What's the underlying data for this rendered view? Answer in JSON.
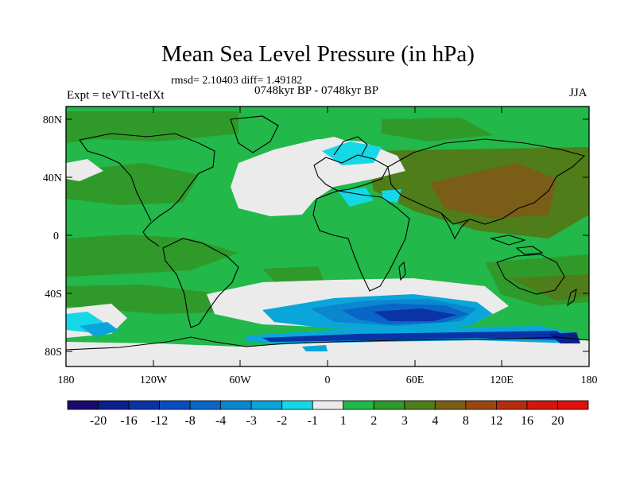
{
  "title": "Mean Sea Level Pressure (in hPa)",
  "stats": "rmsd= 2.10403 diff= 1.49182",
  "experiment": "Expt = teVTt1-teIXt",
  "period": "0748kyr BP - 0748kyr BP",
  "season": "JJA",
  "map": {
    "lat_labels": [
      "80N",
      "40N",
      "0",
      "40S",
      "80S"
    ],
    "lon_labels": [
      "180",
      "120W",
      "60W",
      "0",
      "60E",
      "120E",
      "180"
    ]
  },
  "colorbar": {
    "labels": [
      "-20",
      "-16",
      "-12",
      "-8",
      "-4",
      "-3",
      "-2",
      "-1",
      "1",
      "2",
      "3",
      "4",
      "8",
      "12",
      "16",
      "20"
    ],
    "colors": [
      "#1a0a6e",
      "#0b1e8c",
      "#0a33a6",
      "#0a4cc0",
      "#0a66c6",
      "#0a87cf",
      "#0aa6da",
      "#14d8e6",
      "#ebebeb",
      "#22b84a",
      "#2f9a2a",
      "#4e7d1a",
      "#7a5d16",
      "#9a4612",
      "#b52d0e",
      "#cf170a",
      "#e10f0a"
    ]
  },
  "colors": {
    "positive_small": "#22b84a",
    "positive_mid": "#2f9a2a",
    "negative_strong": "#0a33a6",
    "near_zero": "#ebebeb"
  }
}
